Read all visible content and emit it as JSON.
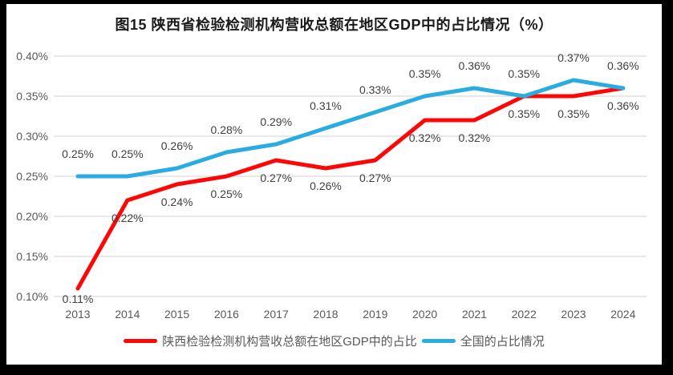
{
  "palette": {
    "frame": "#000000",
    "panel": "#FFFFFF",
    "grid": "#D9D9D9",
    "axis_text": "#595959",
    "data_label_text": "#404040",
    "title_text": "#1A1A1A",
    "series_red": "#FE0606",
    "series_blue": "#2AACE3"
  },
  "chart_data": {
    "type": "line",
    "title": "图15 陕西省检验检测机构营收总额在地区GDP中的占比情况（%）",
    "categories": [
      "2013",
      "2014",
      "2015",
      "2016",
      "2017",
      "2018",
      "2019",
      "2020",
      "2021",
      "2022",
      "2023",
      "2024"
    ],
    "xlabel": "",
    "ylabel": "",
    "ylim": [
      0.1,
      0.4
    ],
    "grid": "horizontal",
    "legend_position": "bottom",
    "y_axis": {
      "ticks": [
        "0.10%",
        "0.15%",
        "0.20%",
        "0.25%",
        "0.30%",
        "0.35%",
        "0.40%"
      ],
      "tick_values": [
        0.1,
        0.15,
        0.2,
        0.25,
        0.3,
        0.35,
        0.4
      ],
      "range": [
        0.1,
        0.4
      ],
      "unit": "%"
    },
    "series": [
      {
        "slug": "shaanxi",
        "name": "陕西检验检测机构营收总额在地区GDP中的占比",
        "color": "#FE0606",
        "values": [
          0.11,
          0.22,
          0.24,
          0.25,
          0.27,
          0.26,
          0.27,
          0.32,
          0.32,
          0.35,
          0.35,
          0.36
        ],
        "labels": [
          "0.11%",
          "0.22%",
          "0.24%",
          "0.25%",
          "0.27%",
          "0.26%",
          "0.27%",
          "0.32%",
          "0.32%",
          "0.35%",
          "0.35%",
          "0.36%"
        ],
        "label_position": "below"
      },
      {
        "slug": "national",
        "name": "全国的占比情况",
        "color": "#2AACE3",
        "values": [
          0.25,
          0.25,
          0.26,
          0.28,
          0.29,
          0.31,
          0.33,
          0.35,
          0.36,
          0.35,
          0.37,
          0.36
        ],
        "labels": [
          "0.25%",
          "0.25%",
          "0.26%",
          "0.28%",
          "0.29%",
          "0.31%",
          "0.33%",
          "0.35%",
          "0.36%",
          "0.35%",
          "0.37%",
          "0.36%"
        ],
        "label_position": "above"
      }
    ]
  }
}
